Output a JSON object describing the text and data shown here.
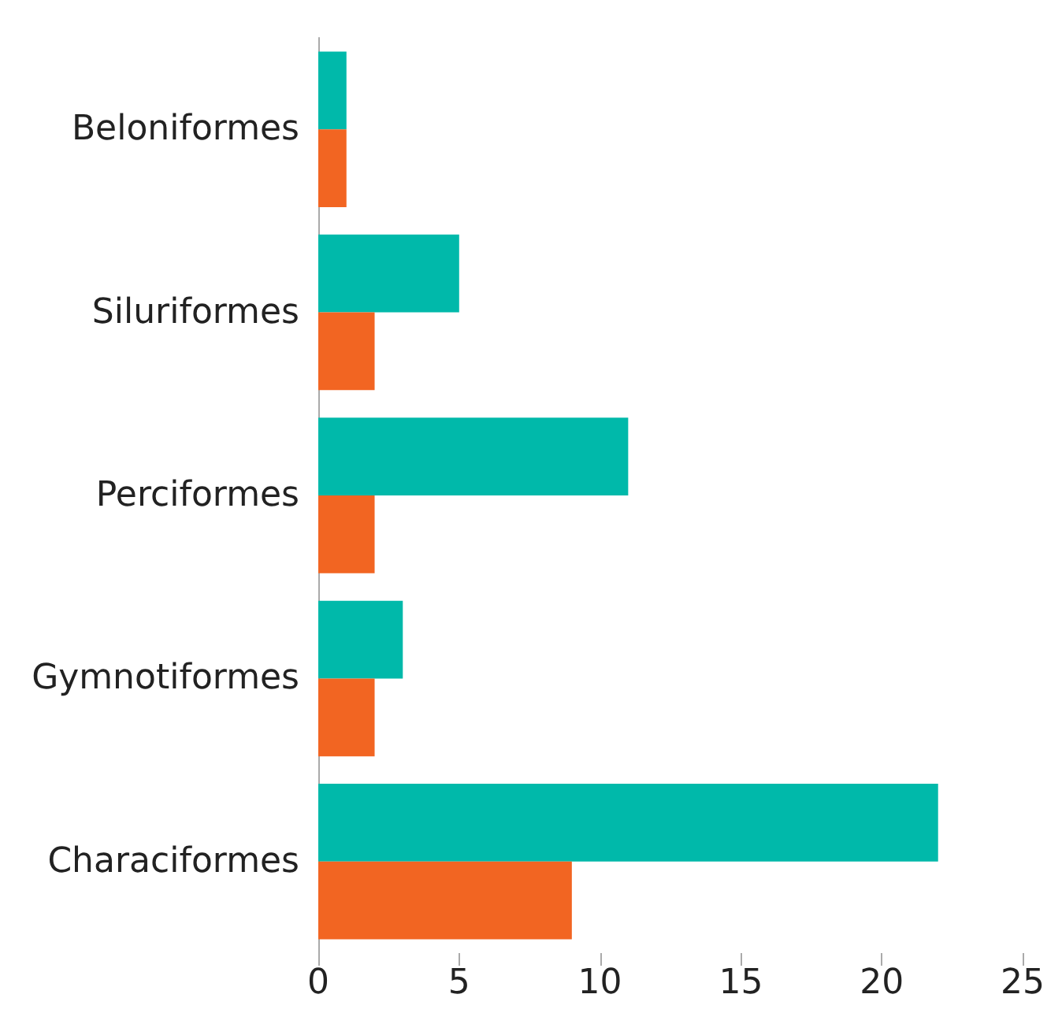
{
  "chart_data": {
    "type": "bar",
    "orientation": "horizontal",
    "categories": [
      "Beloniformes",
      "Siluriformes",
      "Perciformes",
      "Gymnotiformes",
      "Characiformes"
    ],
    "series": [
      {
        "color": "#00b9aa",
        "values": [
          1,
          5,
          11,
          3,
          22
        ]
      },
      {
        "color": "#f26522",
        "values": [
          1,
          2,
          2,
          2,
          9
        ]
      }
    ],
    "xlim": [
      0,
      25
    ],
    "xticks": [
      0,
      5,
      10,
      15,
      20,
      25
    ],
    "grid": false
  }
}
